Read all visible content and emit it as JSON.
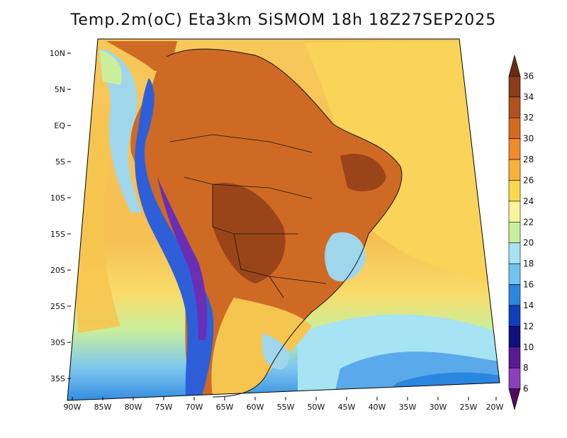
{
  "title": "Temp.2m(oC) Eta3km SiSMOM 18h 18Z27SEP2025",
  "lat_labels": [
    "10N",
    "5N",
    "EQ",
    "5S",
    "10S",
    "15S",
    "20S",
    "25S",
    "30S",
    "35S"
  ],
  "lon_labels": [
    "90W",
    "85W",
    "80W",
    "75W",
    "70W",
    "65W",
    "60W",
    "55W",
    "50W",
    "45W",
    "40W",
    "35W",
    "30W",
    "25W",
    "20W"
  ],
  "colorbar": {
    "labels": [
      "36",
      "34",
      "32",
      "30",
      "28",
      "26",
      "24",
      "22",
      "20",
      "18",
      "16",
      "14",
      "12",
      "10",
      "8",
      "6"
    ],
    "colors": [
      "#6b2a14",
      "#8c3b1c",
      "#b2501f",
      "#d66a1f",
      "#f08a2c",
      "#f7b23c",
      "#fbd84e",
      "#faf59a",
      "#c9ef9c",
      "#a6e3f3",
      "#72c3f0",
      "#2b86df",
      "#0f3fba",
      "#10107e",
      "#5a1a98",
      "#8a3fbf",
      "#4d0b63"
    ]
  },
  "colors": {
    "ocean_warm": "#f6c256",
    "ocean_mid": "#f9dc6a",
    "ocean_cool": "#bfe8a0",
    "ocean_cold": "#7fc8ee",
    "land_hot": "#c65c22",
    "land_hottest": "#9a4519",
    "andes": "#1f4fd0"
  }
}
